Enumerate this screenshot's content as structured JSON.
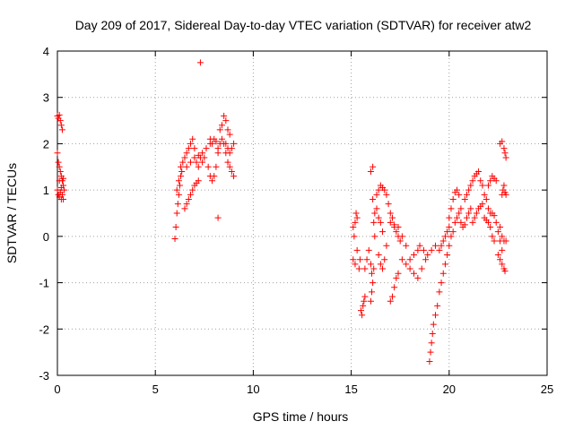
{
  "chart_data": {
    "type": "scatter",
    "title": "Day 209 of 2017, Sidereal Day-to-day VTEC variation (SDTVAR) for receiver atw2",
    "xlabel": "GPS time / hours",
    "ylabel": "SDTVAR / TECUs",
    "xlim": [
      0,
      25
    ],
    "ylim": [
      -3,
      4
    ],
    "xticks": [
      0,
      5,
      10,
      15,
      20,
      25
    ],
    "yticks": [
      -3,
      -2,
      -1,
      0,
      1,
      2,
      3,
      4
    ],
    "xtick_labels": [
      "0",
      "5",
      "10",
      "15",
      "20",
      "25"
    ],
    "ytick_labels": [
      "-3",
      "-2",
      "-1",
      "0",
      "1",
      "2",
      "3",
      "4"
    ],
    "grid": true,
    "marker": "+",
    "color": "#ff0000",
    "series": [
      {
        "name": "SDTVAR",
        "points": [
          [
            0.0,
            2.6
          ],
          [
            0.05,
            2.55
          ],
          [
            0.1,
            2.62
          ],
          [
            0.15,
            2.5
          ],
          [
            0.2,
            2.4
          ],
          [
            0.25,
            2.3
          ],
          [
            0.0,
            1.8
          ],
          [
            0.05,
            1.6
          ],
          [
            0.1,
            1.5
          ],
          [
            0.15,
            1.4
          ],
          [
            0.2,
            1.3
          ],
          [
            0.25,
            1.2
          ],
          [
            0.3,
            1.1
          ],
          [
            0.0,
            1.0
          ],
          [
            0.05,
            0.9
          ],
          [
            0.1,
            0.85
          ],
          [
            0.15,
            0.95
          ],
          [
            0.2,
            0.8
          ],
          [
            0.25,
            0.9
          ],
          [
            0.3,
            0.8
          ],
          [
            0.1,
            1.2
          ],
          [
            0.2,
            1.05
          ],
          [
            0.3,
            1.25
          ],
          [
            0.35,
            1.0
          ],
          [
            6.0,
            -0.05
          ],
          [
            6.05,
            0.2
          ],
          [
            6.1,
            0.5
          ],
          [
            6.15,
            0.7
          ],
          [
            6.2,
            0.9
          ],
          [
            6.25,
            1.1
          ],
          [
            6.3,
            1.3
          ],
          [
            6.35,
            1.4
          ],
          [
            6.1,
            1.0
          ],
          [
            6.2,
            1.2
          ],
          [
            6.3,
            1.5
          ],
          [
            6.4,
            1.6
          ],
          [
            6.5,
            1.7
          ],
          [
            6.6,
            1.8
          ],
          [
            6.7,
            1.9
          ],
          [
            6.8,
            2.0
          ],
          [
            6.5,
            0.6
          ],
          [
            6.6,
            0.7
          ],
          [
            6.7,
            0.8
          ],
          [
            6.8,
            0.9
          ],
          [
            6.9,
            1.0
          ],
          [
            7.0,
            1.1
          ],
          [
            7.1,
            1.15
          ],
          [
            7.2,
            1.2
          ],
          [
            6.6,
            1.5
          ],
          [
            6.8,
            1.6
          ],
          [
            7.0,
            1.7
          ],
          [
            7.2,
            1.75
          ],
          [
            7.4,
            1.8
          ],
          [
            7.6,
            1.9
          ],
          [
            7.8,
            2.0
          ],
          [
            6.9,
            2.1
          ],
          [
            7.0,
            1.9
          ],
          [
            7.1,
            1.6
          ],
          [
            7.2,
            1.5
          ],
          [
            7.3,
            1.7
          ],
          [
            7.4,
            1.6
          ],
          [
            7.5,
            1.7
          ],
          [
            7.3,
            3.75
          ],
          [
            7.7,
            1.5
          ],
          [
            7.8,
            1.3
          ],
          [
            7.9,
            1.2
          ],
          [
            8.0,
            1.3
          ],
          [
            8.1,
            1.5
          ],
          [
            8.2,
            1.8
          ],
          [
            7.8,
            2.1
          ],
          [
            7.9,
            2.0
          ],
          [
            8.0,
            2.1
          ],
          [
            8.1,
            2.05
          ],
          [
            8.2,
            1.9
          ],
          [
            8.3,
            2.0
          ],
          [
            8.2,
            0.4
          ],
          [
            8.3,
            2.3
          ],
          [
            8.4,
            2.4
          ],
          [
            8.5,
            2.6
          ],
          [
            8.6,
            2.5
          ],
          [
            8.7,
            2.3
          ],
          [
            8.8,
            2.2
          ],
          [
            8.4,
            2.1
          ],
          [
            8.5,
            2.0
          ],
          [
            8.6,
            1.8
          ],
          [
            8.7,
            1.6
          ],
          [
            8.8,
            1.5
          ],
          [
            8.9,
            1.4
          ],
          [
            9.0,
            1.3
          ],
          [
            8.6,
            2.0
          ],
          [
            8.7,
            1.9
          ],
          [
            8.8,
            1.8
          ],
          [
            8.9,
            1.9
          ],
          [
            9.0,
            2.0
          ],
          [
            15.1,
            0.2
          ],
          [
            15.15,
            0.0
          ],
          [
            15.2,
            0.3
          ],
          [
            15.25,
            0.5
          ],
          [
            15.3,
            0.4
          ],
          [
            15.1,
            -0.5
          ],
          [
            15.2,
            -0.6
          ],
          [
            15.3,
            -0.3
          ],
          [
            15.4,
            -0.7
          ],
          [
            15.45,
            -0.5
          ],
          [
            15.5,
            -1.6
          ],
          [
            15.55,
            -1.7
          ],
          [
            15.6,
            -1.5
          ],
          [
            15.65,
            -1.4
          ],
          [
            15.7,
            -1.3
          ],
          [
            15.7,
            -0.7
          ],
          [
            15.8,
            -0.5
          ],
          [
            15.9,
            -0.3
          ],
          [
            16.0,
            -0.6
          ],
          [
            16.05,
            -0.8
          ],
          [
            16.0,
            1.4
          ],
          [
            16.1,
            1.5
          ],
          [
            16.1,
            0.8
          ],
          [
            16.15,
            0.3
          ],
          [
            16.2,
            0.0
          ],
          [
            16.0,
            -1.4
          ],
          [
            16.05,
            -1.2
          ],
          [
            16.1,
            -1.0
          ],
          [
            16.15,
            -0.7
          ],
          [
            16.2,
            0.5
          ],
          [
            16.3,
            0.6
          ],
          [
            16.4,
            0.4
          ],
          [
            16.5,
            0.3
          ],
          [
            16.6,
            0.1
          ],
          [
            16.3,
            0.9
          ],
          [
            16.4,
            1.0
          ],
          [
            16.5,
            1.1
          ],
          [
            16.6,
            1.05
          ],
          [
            16.7,
            1.0
          ],
          [
            16.8,
            0.9
          ],
          [
            16.9,
            0.7
          ],
          [
            16.4,
            -0.4
          ],
          [
            16.5,
            -0.6
          ],
          [
            16.6,
            -0.7
          ],
          [
            16.7,
            -0.5
          ],
          [
            16.8,
            -0.2
          ],
          [
            17.0,
            -1.4
          ],
          [
            17.1,
            -1.3
          ],
          [
            17.2,
            -1.1
          ],
          [
            17.3,
            -0.9
          ],
          [
            17.4,
            -0.8
          ],
          [
            17.0,
            0.5
          ],
          [
            17.1,
            0.4
          ],
          [
            17.2,
            0.2
          ],
          [
            17.3,
            0.1
          ],
          [
            17.4,
            0.0
          ],
          [
            17.5,
            -0.1
          ],
          [
            17.0,
            0.3
          ],
          [
            17.2,
            0.25
          ],
          [
            17.4,
            0.2
          ],
          [
            17.6,
            0.0
          ],
          [
            17.8,
            -0.2
          ],
          [
            17.6,
            -0.5
          ],
          [
            17.8,
            -0.6
          ],
          [
            18.0,
            -0.5
          ],
          [
            18.2,
            -0.4
          ],
          [
            18.4,
            -0.3
          ],
          [
            18.0,
            -0.7
          ],
          [
            18.2,
            -0.8
          ],
          [
            18.4,
            -0.9
          ],
          [
            18.6,
            -0.7
          ],
          [
            18.8,
            -0.5
          ],
          [
            18.5,
            -0.2
          ],
          [
            18.7,
            -0.3
          ],
          [
            18.9,
            -0.4
          ],
          [
            19.1,
            -0.3
          ],
          [
            19.3,
            -0.2
          ],
          [
            19.0,
            -2.7
          ],
          [
            19.05,
            -2.5
          ],
          [
            19.1,
            -2.3
          ],
          [
            19.15,
            -2.1
          ],
          [
            19.2,
            -1.9
          ],
          [
            19.3,
            -1.7
          ],
          [
            19.4,
            -1.5
          ],
          [
            19.5,
            -1.2
          ],
          [
            19.6,
            -1.0
          ],
          [
            19.7,
            -0.8
          ],
          [
            19.8,
            -0.6
          ],
          [
            19.9,
            -0.4
          ],
          [
            20.0,
            -0.2
          ],
          [
            19.5,
            -0.3
          ],
          [
            19.6,
            -0.2
          ],
          [
            19.7,
            -0.1
          ],
          [
            19.8,
            0.0
          ],
          [
            19.9,
            0.1
          ],
          [
            20.0,
            0.2
          ],
          [
            20.0,
            0.4
          ],
          [
            20.1,
            0.6
          ],
          [
            20.2,
            0.8
          ],
          [
            20.3,
            0.95
          ],
          [
            20.4,
            1.0
          ],
          [
            20.5,
            0.9
          ],
          [
            20.1,
            0.0
          ],
          [
            20.2,
            0.1
          ],
          [
            20.3,
            0.3
          ],
          [
            20.4,
            0.4
          ],
          [
            20.5,
            0.5
          ],
          [
            20.6,
            0.6
          ],
          [
            20.6,
            0.3
          ],
          [
            20.7,
            0.2
          ],
          [
            20.8,
            0.25
          ],
          [
            20.9,
            0.4
          ],
          [
            21.0,
            0.5
          ],
          [
            21.1,
            0.6
          ],
          [
            20.8,
            0.8
          ],
          [
            20.9,
            0.9
          ],
          [
            21.0,
            1.0
          ],
          [
            21.1,
            1.1
          ],
          [
            21.2,
            1.2
          ],
          [
            21.3,
            1.3
          ],
          [
            21.4,
            1.35
          ],
          [
            21.5,
            1.4
          ],
          [
            21.2,
            0.3
          ],
          [
            21.3,
            0.4
          ],
          [
            21.4,
            0.5
          ],
          [
            21.5,
            0.6
          ],
          [
            21.6,
            0.65
          ],
          [
            21.7,
            0.7
          ],
          [
            21.6,
            1.2
          ],
          [
            21.7,
            1.1
          ],
          [
            21.8,
            0.9
          ],
          [
            21.9,
            0.8
          ],
          [
            22.0,
            0.6
          ],
          [
            22.1,
            0.5
          ],
          [
            21.8,
            0.4
          ],
          [
            21.9,
            0.35
          ],
          [
            22.0,
            0.3
          ],
          [
            22.1,
            0.2
          ],
          [
            22.2,
            0.0
          ],
          [
            22.3,
            -0.1
          ],
          [
            22.0,
            1.1
          ],
          [
            22.1,
            1.2
          ],
          [
            22.2,
            1.3
          ],
          [
            22.3,
            1.25
          ],
          [
            22.4,
            1.2
          ],
          [
            22.2,
            0.5
          ],
          [
            22.3,
            0.45
          ],
          [
            22.4,
            0.3
          ],
          [
            22.5,
            0.1
          ],
          [
            22.6,
            -0.1
          ],
          [
            22.7,
            -0.3
          ],
          [
            22.5,
            -0.4
          ],
          [
            22.6,
            -0.5
          ],
          [
            22.7,
            -0.6
          ],
          [
            22.8,
            -0.7
          ],
          [
            22.85,
            -0.75
          ],
          [
            22.7,
            0.9
          ],
          [
            22.75,
            1.0
          ],
          [
            22.8,
            1.1
          ],
          [
            22.85,
            0.95
          ],
          [
            22.9,
            0.9
          ],
          [
            22.6,
            2.0
          ],
          [
            22.7,
            2.05
          ],
          [
            22.8,
            1.9
          ],
          [
            22.85,
            1.8
          ],
          [
            22.9,
            1.7
          ],
          [
            22.6,
            0.2
          ],
          [
            22.7,
            0.0
          ],
          [
            22.8,
            -0.1
          ],
          [
            22.9,
            -0.1
          ]
        ]
      }
    ]
  }
}
